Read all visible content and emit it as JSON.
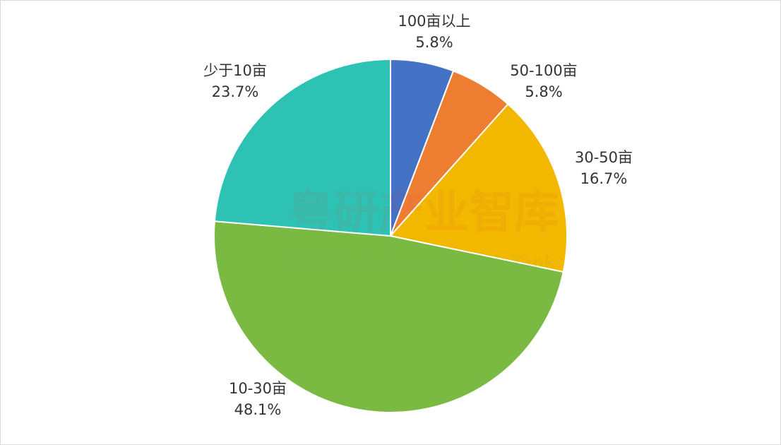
{
  "chart_data": {
    "type": "pie",
    "categories": [
      "100亩以上",
      "50-100亩",
      "30-50亩",
      "10-30亩",
      "少于10亩"
    ],
    "values": [
      5.8,
      5.8,
      16.7,
      48.1,
      23.7
    ],
    "value_labels": [
      "5.8%",
      "5.8%",
      "16.7%",
      "48.1%",
      "23.7%"
    ],
    "colors": [
      "#4472c4",
      "#ed7d31",
      "#f2b800",
      "#7aba43",
      "#2ec2b4"
    ],
    "watermarks": [
      "粤研产业智库",
      "YUEYAN Industry Think Tank"
    ]
  }
}
